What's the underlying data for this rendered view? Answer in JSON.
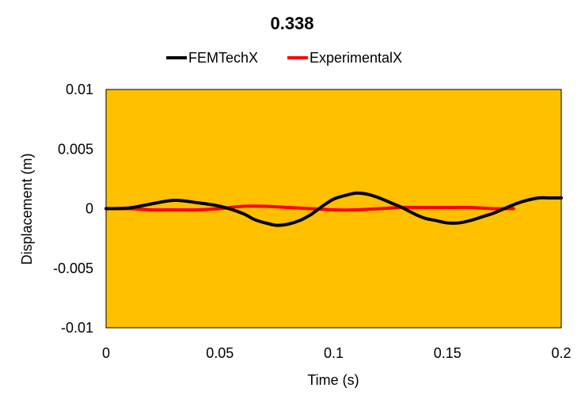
{
  "chart_data": {
    "type": "line",
    "title": "0.338",
    "xlabel": "Time (s)",
    "ylabel": "Displacement (m)",
    "xlim": [
      0,
      0.2
    ],
    "ylim": [
      -0.01,
      0.01
    ],
    "xticks": [
      0,
      0.05,
      0.1,
      0.15,
      0.2
    ],
    "xtick_labels": [
      "0",
      "0.05",
      "0.1",
      "0.15",
      "0.2"
    ],
    "yticks": [
      0.01,
      0.005,
      0,
      -0.005,
      -0.01
    ],
    "ytick_labels": [
      "0.01",
      "0.005",
      "0",
      "-0.005",
      "-0.01"
    ],
    "grid": false,
    "legend_position": "top",
    "plot_background": "#FFC000",
    "series": [
      {
        "name": "FEMTechX",
        "color": "#000000",
        "x": [
          0,
          0.01,
          0.02,
          0.03,
          0.04,
          0.05,
          0.06,
          0.065,
          0.07,
          0.075,
          0.08,
          0.085,
          0.09,
          0.095,
          0.1,
          0.105,
          0.11,
          0.115,
          0.12,
          0.125,
          0.13,
          0.135,
          0.14,
          0.145,
          0.15,
          0.155,
          0.16,
          0.165,
          0.17,
          0.175,
          0.18,
          0.185,
          0.19,
          0.195,
          0.2
        ],
        "y": [
          0,
          5e-05,
          0.0004,
          0.0007,
          0.0005,
          0.0002,
          -0.0004,
          -0.0009,
          -0.0012,
          -0.0014,
          -0.0013,
          -0.001,
          -0.0005,
          0.0002,
          0.0008,
          0.0011,
          0.0013,
          0.0012,
          0.0009,
          0.0005,
          0.0001,
          -0.0004,
          -0.0008,
          -0.001,
          -0.0012,
          -0.0012,
          -0.001,
          -0.0007,
          -0.0004,
          0,
          0.0004,
          0.0007,
          0.0009,
          0.0009,
          0.0009
        ]
      },
      {
        "name": "ExperimentalX",
        "color": "#FF0000",
        "x": [
          0,
          0.01,
          0.02,
          0.03,
          0.04,
          0.05,
          0.06,
          0.07,
          0.08,
          0.09,
          0.1,
          0.11,
          0.12,
          0.13,
          0.14,
          0.15,
          0.16,
          0.17,
          0.179
        ],
        "y": [
          0,
          0,
          -0.0001,
          -0.0001,
          -0.0001,
          0,
          0.0002,
          0.0002,
          0.0001,
          0,
          -0.0001,
          -0.0001,
          0,
          0.0001,
          0.0001,
          0.0001,
          0.0001,
          0,
          0
        ]
      }
    ]
  }
}
